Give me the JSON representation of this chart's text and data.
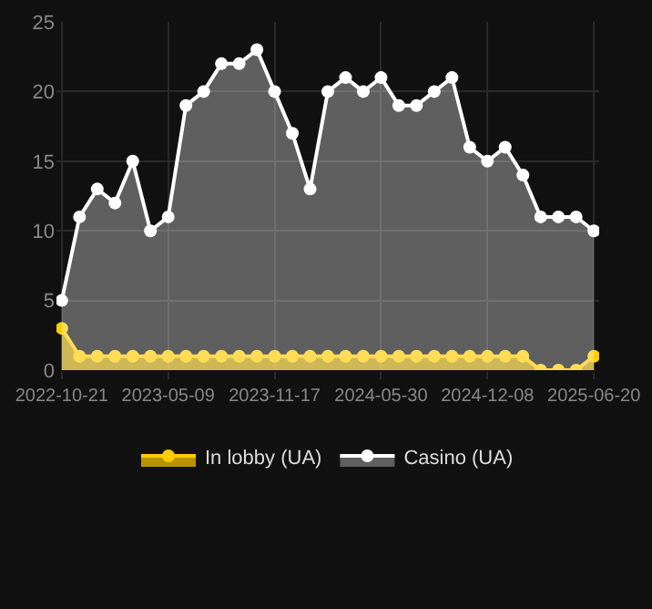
{
  "chart_data": {
    "type": "area",
    "categories": [
      "2022-10-21",
      null,
      null,
      null,
      null,
      null,
      "2023-05-09",
      null,
      null,
      null,
      null,
      null,
      "2023-11-17",
      null,
      null,
      null,
      null,
      null,
      "2024-05-30",
      null,
      null,
      null,
      null,
      null,
      "2024-12-08",
      null,
      null,
      null,
      null,
      null,
      "2025-06-20"
    ],
    "series": [
      {
        "name": "In lobby (UA)",
        "color": "#ffcc00",
        "values": [
          3,
          1,
          1,
          1,
          1,
          1,
          1,
          1,
          1,
          1,
          1,
          1,
          1,
          1,
          1,
          1,
          1,
          1,
          1,
          1,
          1,
          1,
          1,
          1,
          1,
          1,
          1,
          0,
          0,
          0,
          1
        ]
      },
      {
        "name": "Casino (UA)",
        "color": "#ffffff",
        "values": [
          5,
          11,
          13,
          12,
          15,
          10,
          11,
          19,
          20,
          22,
          22,
          23,
          20,
          17,
          13,
          20,
          21,
          20,
          21,
          19,
          19,
          20,
          21,
          16,
          15,
          16,
          14,
          11,
          11,
          11,
          10
        ]
      }
    ],
    "ylim": [
      0,
      25
    ],
    "yticks": [
      0,
      5,
      10,
      15,
      20,
      25
    ],
    "grid": true,
    "legend": "bottom",
    "marker": "circle",
    "line_style": "solid"
  }
}
